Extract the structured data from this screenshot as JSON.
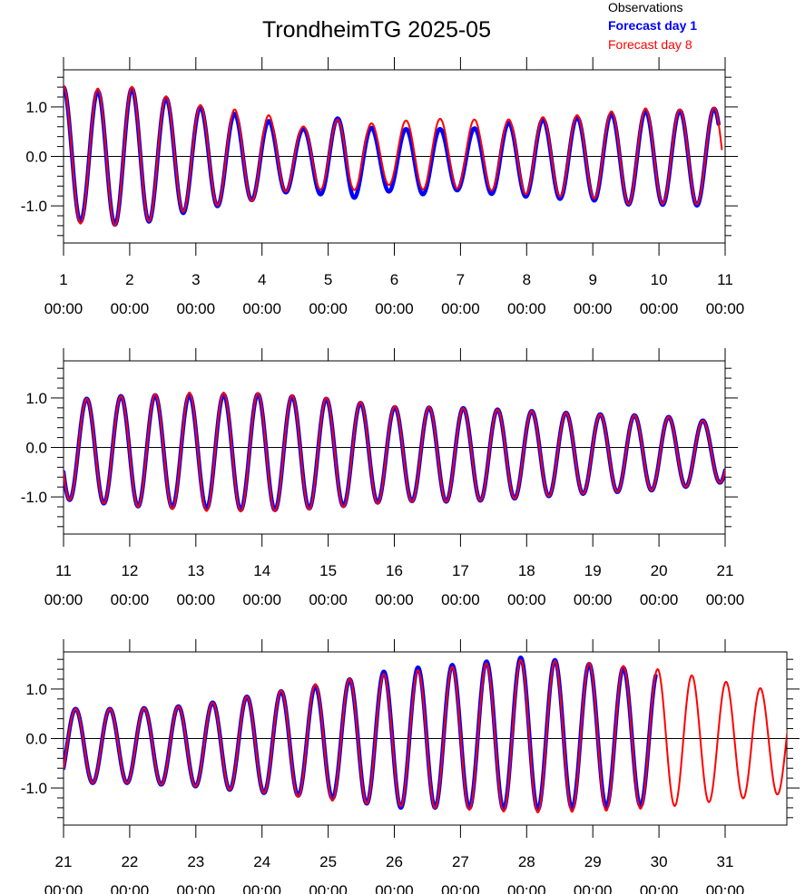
{
  "chart_data": {
    "type": "line",
    "title": "TrondheimTG 2025-05",
    "legend": {
      "placement": "top-right",
      "entries": [
        {
          "label": "Observations",
          "color": "#000000"
        },
        {
          "label": "Forecast day 1",
          "color": "#0000ff"
        },
        {
          "label": "Forecast day 8",
          "color": "#ff0000"
        }
      ]
    },
    "x_unit": "day of month",
    "y_ticks": [
      -1.0,
      0.0,
      1.0
    ],
    "y_tick_labels": [
      "-1.0",
      "0.0",
      "1.0"
    ],
    "ylim": [
      -1.75,
      1.75
    ],
    "grid": false,
    "tide_period_hours": 12.42,
    "panels": [
      {
        "xlim": [
          1,
          11
        ],
        "x_ticks": [
          1,
          2,
          3,
          4,
          5,
          6,
          7,
          8,
          9,
          10,
          11
        ],
        "x_tick_labels": [
          [
            "1",
            "00:00"
          ],
          [
            "2",
            "00:00"
          ],
          [
            "3",
            "00:00"
          ],
          [
            "4",
            "00:00"
          ],
          [
            "5",
            "00:00"
          ],
          [
            "6",
            "00:00"
          ],
          [
            "7",
            "00:00"
          ],
          [
            "8",
            "00:00"
          ],
          [
            "9",
            "00:00"
          ],
          [
            "10",
            "00:00"
          ],
          [
            "11",
            "00:00"
          ]
        ],
        "series": [
          {
            "label": "Forecast day 1",
            "envelope": [
              [
                1.0,
                1.4
              ],
              [
                1.3,
                1.3
              ],
              [
                2.0,
                1.4
              ],
              [
                3.0,
                1.05
              ],
              [
                4.0,
                0.8
              ],
              [
                4.6,
                0.6
              ],
              [
                5.2,
                0.85
              ],
              [
                5.8,
                0.6
              ],
              [
                6.4,
                0.68
              ],
              [
                7.0,
                0.6
              ],
              [
                7.6,
                0.72
              ],
              [
                8.3,
                0.8
              ],
              [
                9.0,
                0.85
              ],
              [
                9.6,
                0.95
              ],
              [
                10.3,
                0.95
              ],
              [
                11.0,
                1.0
              ]
            ],
            "bias": [
              [
                1,
                0
              ],
              [
                4,
                -0.05
              ],
              [
                5,
                -0.05
              ],
              [
                6,
                -0.1
              ],
              [
                7,
                -0.08
              ],
              [
                8,
                -0.05
              ],
              [
                11,
                -0.02
              ]
            ],
            "start": 1.0,
            "end": 10.9
          },
          {
            "label": "Observations",
            "envelope": [
              [
                1.0,
                1.4
              ],
              [
                1.3,
                1.3
              ],
              [
                2.0,
                1.4
              ],
              [
                3.0,
                1.05
              ],
              [
                4.0,
                0.8
              ],
              [
                4.6,
                0.6
              ],
              [
                5.2,
                0.85
              ],
              [
                5.8,
                0.6
              ],
              [
                6.4,
                0.68
              ],
              [
                7.0,
                0.6
              ],
              [
                7.6,
                0.72
              ],
              [
                8.3,
                0.8
              ],
              [
                9.0,
                0.85
              ],
              [
                9.6,
                0.95
              ],
              [
                10.3,
                0.95
              ],
              [
                11.0,
                1.0
              ]
            ],
            "bias": [
              [
                1,
                0
              ],
              [
                4,
                -0.05
              ],
              [
                5,
                -0.05
              ],
              [
                6,
                -0.1
              ],
              [
                7,
                -0.08
              ],
              [
                8,
                -0.05
              ],
              [
                11,
                -0.02
              ]
            ],
            "start": 1.0,
            "end": 1.05
          },
          {
            "label": "Forecast day 8",
            "envelope": [
              [
                1.0,
                1.42
              ],
              [
                1.3,
                1.35
              ],
              [
                2.0,
                1.42
              ],
              [
                3.0,
                1.05
              ],
              [
                4.0,
                0.88
              ],
              [
                4.6,
                0.6
              ],
              [
                5.2,
                0.75
              ],
              [
                5.8,
                0.6
              ],
              [
                6.4,
                0.72
              ],
              [
                7.0,
                0.7
              ],
              [
                7.6,
                0.72
              ],
              [
                8.3,
                0.8
              ],
              [
                9.0,
                0.85
              ],
              [
                9.6,
                0.98
              ],
              [
                10.3,
                0.95
              ],
              [
                11.0,
                1.0
              ]
            ],
            "bias": [
              [
                1,
                0
              ],
              [
                4,
                0
              ],
              [
                5,
                0
              ],
              [
                6,
                0.05
              ],
              [
                7,
                0.05
              ],
              [
                8,
                0
              ],
              [
                11,
                0
              ]
            ],
            "start": 1.0,
            "end": 10.95
          }
        ]
      },
      {
        "xlim": [
          11,
          21
        ],
        "x_ticks": [
          11,
          12,
          13,
          14,
          15,
          16,
          17,
          18,
          19,
          20,
          21
        ],
        "x_tick_labels": [
          [
            "11",
            "00:00"
          ],
          [
            "12",
            "00:00"
          ],
          [
            "13",
            "00:00"
          ],
          [
            "14",
            "00:00"
          ],
          [
            "15",
            "00:00"
          ],
          [
            "16",
            "00:00"
          ],
          [
            "17",
            "00:00"
          ],
          [
            "18",
            "00:00"
          ],
          [
            "19",
            "00:00"
          ],
          [
            "20",
            "00:00"
          ],
          [
            "21",
            "00:00"
          ]
        ],
        "series": [
          {
            "label": "Forecast day 1",
            "envelope": [
              [
                11.0,
                1.0
              ],
              [
                12.0,
                1.12
              ],
              [
                13.0,
                1.15
              ],
              [
                14.0,
                1.18
              ],
              [
                15.0,
                1.1
              ],
              [
                16.0,
                0.95
              ],
              [
                17.0,
                0.95
              ],
              [
                18.0,
                0.88
              ],
              [
                19.0,
                0.8
              ],
              [
                20.0,
                0.75
              ],
              [
                21.0,
                0.6
              ]
            ],
            "bias": [
              [
                11,
                -0.05
              ],
              [
                14,
                -0.1
              ],
              [
                17,
                -0.15
              ],
              [
                21,
                -0.1
              ]
            ],
            "start": 11.0,
            "end": 21.0
          },
          {
            "label": "Observations",
            "envelope": [
              [
                11.0,
                1.0
              ],
              [
                12.0,
                1.12
              ],
              [
                13.0,
                1.15
              ],
              [
                14.0,
                1.18
              ],
              [
                15.0,
                1.1
              ],
              [
                16.0,
                0.95
              ],
              [
                17.0,
                0.95
              ],
              [
                18.0,
                0.88
              ],
              [
                19.0,
                0.8
              ],
              [
                20.0,
                0.75
              ],
              [
                21.0,
                0.6
              ]
            ],
            "bias": [
              [
                11,
                -0.05
              ],
              [
                14,
                -0.1
              ],
              [
                17,
                -0.15
              ],
              [
                21,
                -0.1
              ]
            ],
            "start": 11.0,
            "end": 11.0
          },
          {
            "label": "Forecast day 8",
            "envelope": [
              [
                11.0,
                1.0
              ],
              [
                12.0,
                1.12
              ],
              [
                13.0,
                1.2
              ],
              [
                14.0,
                1.2
              ],
              [
                15.0,
                1.12
              ],
              [
                16.0,
                0.97
              ],
              [
                17.0,
                0.95
              ],
              [
                18.0,
                0.88
              ],
              [
                19.0,
                0.8
              ],
              [
                20.0,
                0.75
              ],
              [
                21.0,
                0.6
              ]
            ],
            "bias": [
              [
                11,
                -0.05
              ],
              [
                14,
                -0.1
              ],
              [
                17,
                -0.15
              ],
              [
                21,
                -0.1
              ]
            ],
            "start": 11.0,
            "end": 21.0
          }
        ]
      },
      {
        "xlim": [
          21,
          32
        ],
        "x_ticks": [
          21,
          22,
          23,
          24,
          25,
          26,
          27,
          28,
          29,
          30,
          31
        ],
        "x_tick_labels": [
          [
            "21",
            "00:00"
          ],
          [
            "22",
            "00:00"
          ],
          [
            "23",
            "00:00"
          ],
          [
            "24",
            "00:00"
          ],
          [
            "25",
            "00:00"
          ],
          [
            "26",
            "00:00"
          ],
          [
            "27",
            "00:00"
          ],
          [
            "28",
            "00:00"
          ],
          [
            "29",
            "00:00"
          ],
          [
            "30",
            "00:00"
          ],
          [
            "31",
            "00:00"
          ]
        ],
        "series": [
          {
            "label": "Forecast day 1",
            "envelope": [
              [
                21.0,
                0.75
              ],
              [
                22.0,
                0.75
              ],
              [
                23.0,
                0.82
              ],
              [
                24.0,
                1.0
              ],
              [
                25.0,
                1.15
              ],
              [
                26.0,
                1.4
              ],
              [
                27.0,
                1.45
              ],
              [
                28.0,
                1.55
              ],
              [
                29.0,
                1.45
              ],
              [
                30.0,
                1.35
              ],
              [
                31.0,
                1.2
              ],
              [
                32.0,
                1.0
              ]
            ],
            "bias": [
              [
                21,
                -0.15
              ],
              [
                23,
                -0.15
              ],
              [
                25,
                -0.05
              ],
              [
                28,
                0.1
              ],
              [
                30,
                0
              ],
              [
                32,
                0
              ]
            ],
            "start": 21.0,
            "end": 29.95
          },
          {
            "label": "Observations",
            "envelope": [
              [
                21.0,
                0.75
              ],
              [
                22.0,
                0.75
              ],
              [
                23.0,
                0.82
              ],
              [
                24.0,
                1.0
              ],
              [
                25.0,
                1.15
              ],
              [
                26.0,
                1.4
              ],
              [
                27.0,
                1.45
              ],
              [
                28.0,
                1.55
              ],
              [
                29.0,
                1.45
              ],
              [
                30.0,
                1.35
              ],
              [
                31.0,
                1.2
              ],
              [
                32.0,
                1.0
              ]
            ],
            "bias": [
              [
                21,
                -0.15
              ],
              [
                23,
                -0.15
              ],
              [
                25,
                -0.05
              ],
              [
                28,
                0.1
              ],
              [
                30,
                0
              ],
              [
                32,
                0
              ]
            ],
            "start": 21.0,
            "end": 21.0
          },
          {
            "label": "Forecast day 8",
            "envelope": [
              [
                21.0,
                0.75
              ],
              [
                22.0,
                0.75
              ],
              [
                23.0,
                0.82
              ],
              [
                24.0,
                1.0
              ],
              [
                25.0,
                1.2
              ],
              [
                26.0,
                1.35
              ],
              [
                27.0,
                1.45
              ],
              [
                28.0,
                1.55
              ],
              [
                29.0,
                1.5
              ],
              [
                30.0,
                1.4
              ],
              [
                31.0,
                1.2
              ],
              [
                32.0,
                1.0
              ]
            ],
            "bias": [
              [
                21,
                -0.15
              ],
              [
                23,
                -0.15
              ],
              [
                25,
                -0.05
              ],
              [
                28,
                0.05
              ],
              [
                30,
                0
              ],
              [
                32,
                -0.1
              ]
            ],
            "start": 21.0,
            "end": 32.0
          }
        ]
      }
    ]
  }
}
